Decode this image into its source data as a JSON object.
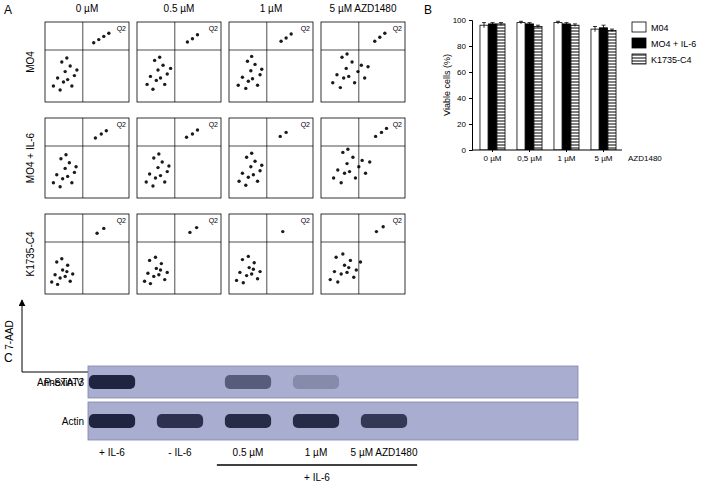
{
  "figure": {
    "panel_labels": [
      "A",
      "B",
      "C"
    ],
    "flow": {
      "columns": [
        "0 µM",
        "0.5 µM",
        "1 µM",
        "5 µM AZD1480"
      ],
      "rows": [
        "MO4",
        "MO4 + IL-6",
        "K1735-C4"
      ],
      "x_label": "Annexin-V",
      "y_label": "7-AAD"
    },
    "blot": {
      "rows": [
        {
          "label": "P-STAT3",
          "intensity": [
            1,
            0,
            0.6,
            0.25,
            0
          ]
        },
        {
          "label": "Actin",
          "intensity": [
            1,
            0.9,
            0.95,
            0.95,
            0.85
          ]
        }
      ],
      "lanes": [
        "+ IL-6",
        "- IL-6",
        "0.5 µM",
        "1 µM",
        "5 µM AZD1480"
      ],
      "bracket_label": "+ IL-6",
      "color": "#1f2440",
      "background": "#a9aed0"
    }
  },
  "chart_data": [
    {
      "type": "scatter",
      "x": [
        10,
        15,
        18,
        22,
        24,
        27,
        30,
        32,
        35,
        20,
        26,
        38,
        58,
        64,
        70,
        76
      ],
      "y": [
        20,
        30,
        15,
        25,
        38,
        28,
        45,
        20,
        33,
        50,
        55,
        40,
        74,
        78,
        82,
        86
      ],
      "xlim": [
        0,
        100
      ],
      "ylim": [
        0,
        100
      ],
      "tick_labels": false,
      "gate": {
        "x": 45,
        "y": 65
      },
      "annotation": "Q2",
      "color": "#1a1a1a"
    },
    {
      "type": "scatter",
      "x": [
        12,
        16,
        19,
        23,
        25,
        28,
        31,
        33,
        36,
        21,
        27,
        40,
        60,
        66,
        72
      ],
      "y": [
        22,
        32,
        16,
        27,
        40,
        30,
        46,
        22,
        35,
        52,
        56,
        42,
        75,
        79,
        84
      ],
      "xlim": [
        0,
        100
      ],
      "ylim": [
        0,
        100
      ],
      "tick_labels": false,
      "gate": {
        "x": 45,
        "y": 65
      },
      "annotation": "Q2",
      "color": "#1a1a1a"
    },
    {
      "type": "scatter",
      "x": [
        11,
        16,
        20,
        23,
        26,
        28,
        31,
        34,
        37,
        22,
        27,
        39,
        62,
        68,
        74
      ],
      "y": [
        21,
        31,
        17,
        26,
        39,
        29,
        47,
        21,
        34,
        51,
        57,
        41,
        76,
        80,
        85
      ],
      "xlim": [
        0,
        100
      ],
      "ylim": [
        0,
        100
      ],
      "tick_labels": false,
      "gate": {
        "x": 45,
        "y": 65
      },
      "annotation": "Q2",
      "color": "#1a1a1a"
    },
    {
      "type": "scatter",
      "x": [
        14,
        19,
        23,
        27,
        30,
        33,
        37,
        40,
        44,
        25,
        31,
        48,
        52,
        56,
        64,
        70,
        76
      ],
      "y": [
        24,
        34,
        18,
        30,
        42,
        32,
        50,
        24,
        38,
        56,
        60,
        46,
        30,
        44,
        76,
        81,
        86
      ],
      "xlim": [
        0,
        100
      ],
      "ylim": [
        0,
        100
      ],
      "tick_labels": false,
      "gate": {
        "x": 45,
        "y": 65
      },
      "annotation": "Q2",
      "color": "#1a1a1a"
    },
    {
      "type": "scatter",
      "x": [
        10,
        14,
        18,
        21,
        24,
        27,
        29,
        32,
        35,
        19,
        25,
        37,
        60,
        67,
        73
      ],
      "y": [
        19,
        29,
        14,
        24,
        37,
        27,
        44,
        19,
        32,
        49,
        54,
        39,
        75,
        80,
        84
      ],
      "xlim": [
        0,
        100
      ],
      "ylim": [
        0,
        100
      ],
      "tick_labels": false,
      "gate": {
        "x": 45,
        "y": 65
      },
      "annotation": "Q2",
      "color": "#1a1a1a"
    },
    {
      "type": "scatter",
      "x": [
        11,
        15,
        19,
        22,
        25,
        28,
        30,
        33,
        36,
        20,
        26,
        38,
        59,
        66,
        72
      ],
      "y": [
        20,
        30,
        15,
        25,
        38,
        28,
        45,
        20,
        33,
        50,
        55,
        40,
        76,
        80,
        85
      ],
      "xlim": [
        0,
        100
      ],
      "ylim": [
        0,
        100
      ],
      "tick_labels": false,
      "gate": {
        "x": 45,
        "y": 65
      },
      "annotation": "Q2",
      "color": "#1a1a1a"
    },
    {
      "type": "scatter",
      "x": [
        12,
        16,
        20,
        23,
        26,
        29,
        31,
        34,
        37,
        21,
        27,
        39,
        61,
        68
      ],
      "y": [
        21,
        31,
        16,
        26,
        39,
        29,
        46,
        21,
        34,
        51,
        56,
        41,
        77,
        82
      ],
      "xlim": [
        0,
        100
      ],
      "ylim": [
        0,
        100
      ],
      "tick_labels": false,
      "gate": {
        "x": 45,
        "y": 65
      },
      "annotation": "Q2",
      "color": "#1a1a1a"
    },
    {
      "type": "scatter",
      "x": [
        15,
        20,
        24,
        28,
        31,
        34,
        38,
        41,
        45,
        26,
        32,
        49,
        53,
        58,
        65,
        72,
        78
      ],
      "y": [
        25,
        35,
        19,
        31,
        43,
        33,
        51,
        25,
        39,
        57,
        61,
        47,
        31,
        45,
        77,
        82,
        87
      ],
      "xlim": [
        0,
        100
      ],
      "ylim": [
        0,
        100
      ],
      "tick_labels": false,
      "gate": {
        "x": 45,
        "y": 65
      },
      "annotation": "Q2",
      "color": "#1a1a1a"
    },
    {
      "type": "scatter",
      "x": [
        8,
        12,
        15,
        18,
        21,
        24,
        27,
        30,
        14,
        20,
        26,
        33,
        62,
        70
      ],
      "y": [
        15,
        24,
        12,
        20,
        30,
        22,
        36,
        16,
        40,
        44,
        28,
        25,
        76,
        82
      ],
      "xlim": [
        0,
        100
      ],
      "ylim": [
        0,
        100
      ],
      "tick_labels": false,
      "gate": {
        "x": 45,
        "y": 65
      },
      "annotation": "Q2",
      "color": "#1a1a1a"
    },
    {
      "type": "scatter",
      "x": [
        9,
        13,
        16,
        20,
        23,
        26,
        29,
        33,
        15,
        22,
        28,
        36,
        63,
        71
      ],
      "y": [
        16,
        26,
        13,
        22,
        32,
        24,
        38,
        18,
        42,
        46,
        30,
        27,
        77,
        83
      ],
      "xlim": [
        0,
        100
      ],
      "ylim": [
        0,
        100
      ],
      "tick_labels": false,
      "gate": {
        "x": 45,
        "y": 65
      },
      "annotation": "Q2",
      "color": "#1a1a1a"
    },
    {
      "type": "scatter",
      "x": [
        9,
        13,
        17,
        21,
        24,
        27,
        30,
        34,
        16,
        23,
        29,
        37,
        64
      ],
      "y": [
        17,
        27,
        14,
        23,
        33,
        25,
        39,
        19,
        43,
        47,
        31,
        28,
        78
      ],
      "xlim": [
        0,
        100
      ],
      "ylim": [
        0,
        100
      ],
      "tick_labels": false,
      "gate": {
        "x": 45,
        "y": 65
      },
      "annotation": "Q2",
      "color": "#1a1a1a"
    },
    {
      "type": "scatter",
      "x": [
        11,
        16,
        20,
        24,
        28,
        31,
        35,
        39,
        18,
        26,
        33,
        42,
        47,
        66,
        74
      ],
      "y": [
        18,
        28,
        15,
        25,
        36,
        27,
        42,
        21,
        46,
        50,
        33,
        30,
        40,
        78,
        84
      ],
      "xlim": [
        0,
        100
      ],
      "ylim": [
        0,
        100
      ],
      "tick_labels": false,
      "gate": {
        "x": 45,
        "y": 65
      },
      "annotation": "Q2",
      "color": "#1a1a1a"
    },
    {
      "type": "bar",
      "categories": [
        "0 µM",
        "0,5 µM",
        "1 µM",
        "5 µM"
      ],
      "x_label": "AZD1480",
      "y_label": "Viable cells (%)",
      "ylim": [
        0,
        100
      ],
      "yticks": [
        0,
        20,
        40,
        60,
        80,
        100
      ],
      "legend": "right",
      "series": [
        {
          "name": "M04",
          "color": "#ffffff",
          "values": [
            96,
            98,
            98,
            93
          ],
          "errors": [
            2,
            1,
            1,
            2
          ]
        },
        {
          "name": "MO4 + IL-6",
          "color": "#000000",
          "values": [
            97,
            97,
            97,
            94
          ],
          "errors": [
            1,
            1,
            1,
            2
          ]
        },
        {
          "name": "K1735-C4",
          "color": "#000000",
          "marker": "hatched",
          "values": [
            97,
            95,
            96,
            92
          ],
          "errors": [
            1,
            1,
            1,
            1
          ]
        }
      ]
    }
  ]
}
